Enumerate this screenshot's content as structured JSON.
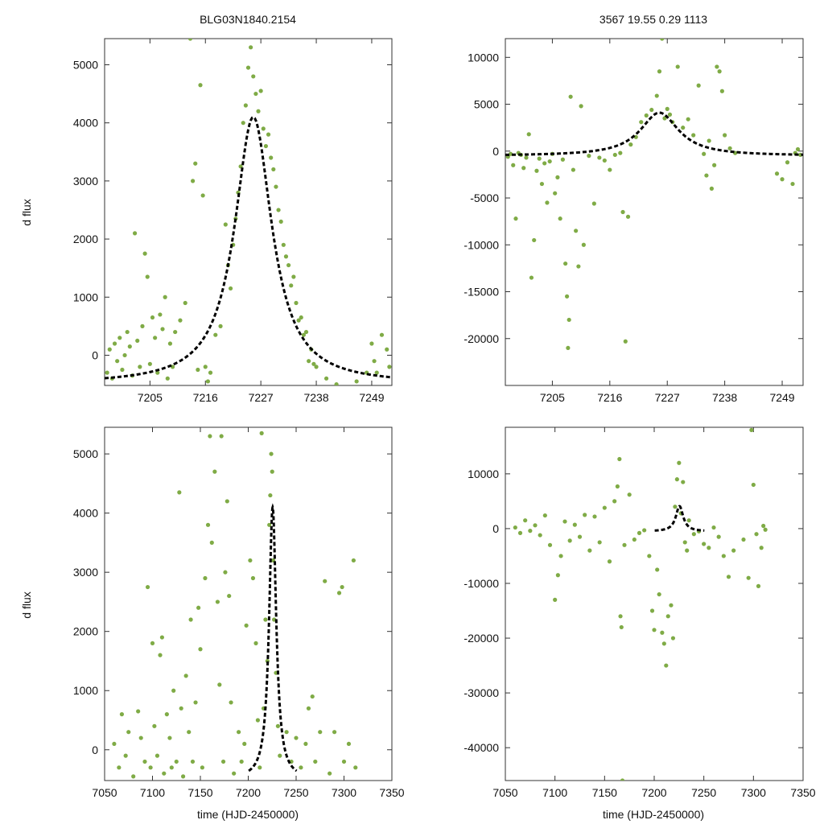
{
  "figure": {
    "title_left": "BLG03N1840.2154",
    "title_right": "3567  19.55  0.29  1113",
    "ylabel": "d flux",
    "xlabel": "time (HJD-2450000)"
  },
  "colors": {
    "points": "#7fab46",
    "model": "#000000",
    "frame": "#333333"
  },
  "chart_data": [
    {
      "id": "top-left",
      "type": "scatter",
      "xlim": [
        7196,
        7253
      ],
      "ylim": [
        -520,
        5450
      ],
      "xticks": [
        7205,
        7216,
        7227,
        7238,
        7249
      ],
      "yticks": [
        0,
        1000,
        2000,
        3000,
        4000,
        5000
      ],
      "ylabel": "d flux",
      "xlabel": "",
      "model": {
        "t0": 7225.5,
        "tE": 11,
        "amp": 4600,
        "base": -500
      },
      "points": [
        [
          7196.5,
          -300
        ],
        [
          7197,
          100
        ],
        [
          7197.5,
          -400
        ],
        [
          7198,
          200
        ],
        [
          7198.5,
          -100
        ],
        [
          7199,
          300
        ],
        [
          7199.5,
          -250
        ],
        [
          7200,
          0
        ],
        [
          7200.5,
          400
        ],
        [
          7201,
          150
        ],
        [
          7201.5,
          -350
        ],
        [
          7202,
          2100
        ],
        [
          7202.5,
          250
        ],
        [
          7203,
          -200
        ],
        [
          7203.5,
          500
        ],
        [
          7204,
          1750
        ],
        [
          7204.5,
          1350
        ],
        [
          7205,
          -150
        ],
        [
          7205.5,
          650
        ],
        [
          7206,
          300
        ],
        [
          7206.5,
          -300
        ],
        [
          7207,
          700
        ],
        [
          7207.5,
          450
        ],
        [
          7208,
          1000
        ],
        [
          7208.5,
          -400
        ],
        [
          7209,
          200
        ],
        [
          7209.5,
          -200
        ],
        [
          7210,
          400
        ],
        [
          7211,
          600
        ],
        [
          7212,
          900
        ],
        [
          7213,
          5450
        ],
        [
          7213.5,
          3000
        ],
        [
          7214,
          3300
        ],
        [
          7214.5,
          -250
        ],
        [
          7215,
          4650
        ],
        [
          7215.5,
          2750
        ],
        [
          7216,
          -200
        ],
        [
          7216.5,
          -450
        ],
        [
          7217,
          -300
        ],
        [
          7218,
          350
        ],
        [
          7219,
          500
        ],
        [
          7220,
          2250
        ],
        [
          7220.5,
          1550
        ],
        [
          7221,
          1150
        ],
        [
          7221.5,
          1900
        ],
        [
          7222,
          2350
        ],
        [
          7222.5,
          2800
        ],
        [
          7223,
          3250
        ],
        [
          7223.5,
          4000
        ],
        [
          7224,
          4300
        ],
        [
          7224.5,
          4950
        ],
        [
          7225,
          5300
        ],
        [
          7225.5,
          4800
        ],
        [
          7226,
          4500
        ],
        [
          7226.5,
          4200
        ],
        [
          7227,
          4550
        ],
        [
          7227.5,
          3900
        ],
        [
          7228,
          3600
        ],
        [
          7228.5,
          3800
        ],
        [
          7229,
          3400
        ],
        [
          7229.5,
          3200
        ],
        [
          7230,
          2900
        ],
        [
          7230.5,
          2500
        ],
        [
          7231,
          2300
        ],
        [
          7231.5,
          1900
        ],
        [
          7232,
          1700
        ],
        [
          7232.5,
          1550
        ],
        [
          7233,
          1200
        ],
        [
          7233.5,
          1350
        ],
        [
          7234,
          900
        ],
        [
          7234.5,
          600
        ],
        [
          7235,
          650
        ],
        [
          7235.5,
          350
        ],
        [
          7236,
          400
        ],
        [
          7236.5,
          -100
        ],
        [
          7237,
          100
        ],
        [
          7237.5,
          -150
        ],
        [
          7238,
          -200
        ],
        [
          7240,
          -400
        ],
        [
          7242,
          -500
        ],
        [
          7246,
          -450
        ],
        [
          7248,
          -300
        ],
        [
          7249,
          200
        ],
        [
          7249.5,
          -100
        ],
        [
          7250,
          -300
        ],
        [
          7251,
          350
        ],
        [
          7252,
          100
        ],
        [
          7252.5,
          -200
        ]
      ]
    },
    {
      "id": "top-right",
      "type": "scatter",
      "xlim": [
        7196,
        7253
      ],
      "ylim": [
        -25000,
        12000
      ],
      "xticks": [
        7205,
        7216,
        7227,
        7238,
        7249
      ],
      "yticks": [
        10000,
        5000,
        0,
        -5000,
        -10000,
        -15000,
        -20000
      ],
      "ylabel": "",
      "xlabel": "",
      "model": {
        "t0": 7225.5,
        "tE": 11,
        "amp": 4600,
        "base": -500
      },
      "points": [
        [
          7196.5,
          -600
        ],
        [
          7197,
          -300
        ],
        [
          7197.5,
          -1500
        ],
        [
          7198,
          -7200
        ],
        [
          7198.5,
          -200
        ],
        [
          7199,
          -400
        ],
        [
          7199.5,
          -1800
        ],
        [
          7200,
          -700
        ],
        [
          7200.5,
          1800
        ],
        [
          7201,
          -13500
        ],
        [
          7201.5,
          -9500
        ],
        [
          7202,
          -2100
        ],
        [
          7202.5,
          -800
        ],
        [
          7203,
          -3500
        ],
        [
          7203.5,
          -1300
        ],
        [
          7204,
          -5500
        ],
        [
          7204.5,
          -1100
        ],
        [
          7205,
          -300
        ],
        [
          7205.5,
          -4500
        ],
        [
          7206,
          -2800
        ],
        [
          7206.5,
          -7200
        ],
        [
          7207,
          -900
        ],
        [
          7207.5,
          -12000
        ],
        [
          7207.8,
          -15500
        ],
        [
          7208,
          -21000
        ],
        [
          7208.2,
          -18000
        ],
        [
          7208.5,
          5800
        ],
        [
          7209,
          -2000
        ],
        [
          7209.5,
          -8500
        ],
        [
          7210,
          -12300
        ],
        [
          7210.5,
          4800
        ],
        [
          7211,
          -10000
        ],
        [
          7212,
          -500
        ],
        [
          7213,
          -5600
        ],
        [
          7214,
          -700
        ],
        [
          7215,
          -1000
        ],
        [
          7216,
          -2000
        ],
        [
          7217,
          -400
        ],
        [
          7218,
          -200
        ],
        [
          7218.5,
          -6500
        ],
        [
          7219,
          -20300
        ],
        [
          7219.5,
          -7000
        ],
        [
          7220,
          700
        ],
        [
          7221,
          1500
        ],
        [
          7222,
          3100
        ],
        [
          7223,
          3800
        ],
        [
          7224,
          4400
        ],
        [
          7225,
          5900
        ],
        [
          7225.5,
          8500
        ],
        [
          7226,
          12000
        ],
        [
          7226.5,
          3500
        ],
        [
          7227,
          4500
        ],
        [
          7227.5,
          3900
        ],
        [
          7228,
          3100
        ],
        [
          7229,
          9000
        ],
        [
          7230,
          2500
        ],
        [
          7231,
          3400
        ],
        [
          7232,
          1700
        ],
        [
          7233,
          7000
        ],
        [
          7234,
          -300
        ],
        [
          7234.5,
          -2600
        ],
        [
          7235,
          1100
        ],
        [
          7235.5,
          -4000
        ],
        [
          7236,
          -1500
        ],
        [
          7236.5,
          9000
        ],
        [
          7237,
          8500
        ],
        [
          7237.5,
          6400
        ],
        [
          7238,
          1700
        ],
        [
          7239,
          300
        ],
        [
          7240,
          -200
        ],
        [
          7248,
          -2400
        ],
        [
          7249,
          -3000
        ],
        [
          7250,
          -1200
        ],
        [
          7251,
          -3500
        ],
        [
          7251.5,
          -200
        ],
        [
          7252,
          200
        ],
        [
          7252.5,
          -400
        ]
      ]
    },
    {
      "id": "bottom-left",
      "type": "scatter",
      "xlim": [
        7050,
        7350
      ],
      "ylim": [
        -520,
        5450
      ],
      "xticks": [
        7050,
        7100,
        7150,
        7200,
        7250,
        7300,
        7350
      ],
      "yticks": [
        0,
        1000,
        2000,
        3000,
        4000,
        5000
      ],
      "ylabel": "d flux",
      "xlabel": "time (HJD-2450000)",
      "model": {
        "t0": 7225.5,
        "tE": 11,
        "amp": 4600,
        "base": -500
      },
      "points": [
        [
          7060,
          100
        ],
        [
          7065,
          -300
        ],
        [
          7068,
          600
        ],
        [
          7072,
          -100
        ],
        [
          7075,
          300
        ],
        [
          7080,
          -450
        ],
        [
          7085,
          650
        ],
        [
          7088,
          200
        ],
        [
          7092,
          -200
        ],
        [
          7095,
          2750
        ],
        [
          7098,
          -300
        ],
        [
          7100,
          1800
        ],
        [
          7102,
          400
        ],
        [
          7105,
          -100
        ],
        [
          7108,
          1600
        ],
        [
          7110,
          1900
        ],
        [
          7112,
          -400
        ],
        [
          7115,
          600
        ],
        [
          7118,
          200
        ],
        [
          7120,
          -300
        ],
        [
          7122,
          1000
        ],
        [
          7125,
          -200
        ],
        [
          7128,
          4350
        ],
        [
          7130,
          700
        ],
        [
          7132,
          -450
        ],
        [
          7135,
          1250
        ],
        [
          7138,
          300
        ],
        [
          7140,
          2200
        ],
        [
          7142,
          -200
        ],
        [
          7145,
          800
        ],
        [
          7148,
          2400
        ],
        [
          7150,
          1700
        ],
        [
          7152,
          -300
        ],
        [
          7155,
          2900
        ],
        [
          7158,
          3800
        ],
        [
          7160,
          5300
        ],
        [
          7162,
          3500
        ],
        [
          7165,
          4700
        ],
        [
          7168,
          2500
        ],
        [
          7170,
          1100
        ],
        [
          7172,
          5300
        ],
        [
          7174,
          -200
        ],
        [
          7176,
          3000
        ],
        [
          7178,
          4200
        ],
        [
          7180,
          2600
        ],
        [
          7182,
          800
        ],
        [
          7185,
          -400
        ],
        [
          7190,
          300
        ],
        [
          7193,
          -200
        ],
        [
          7196,
          100
        ],
        [
          7198,
          2100
        ],
        [
          7202,
          3200
        ],
        [
          7205,
          2900
        ],
        [
          7208,
          1800
        ],
        [
          7210,
          500
        ],
        [
          7212,
          -300
        ],
        [
          7214,
          5350
        ],
        [
          7216,
          700
        ],
        [
          7218,
          2200
        ],
        [
          7220,
          1500
        ],
        [
          7222,
          3800
        ],
        [
          7223,
          4300
        ],
        [
          7224,
          5000
        ],
        [
          7225,
          4700
        ],
        [
          7226,
          3200
        ],
        [
          7227,
          2200
        ],
        [
          7229,
          1300
        ],
        [
          7231,
          400
        ],
        [
          7233,
          -100
        ],
        [
          7240,
          300
        ],
        [
          7245,
          -200
        ],
        [
          7250,
          200
        ],
        [
          7255,
          -300
        ],
        [
          7260,
          100
        ],
        [
          7263,
          700
        ],
        [
          7267,
          900
        ],
        [
          7270,
          -200
        ],
        [
          7275,
          300
        ],
        [
          7280,
          2850
        ],
        [
          7285,
          -400
        ],
        [
          7290,
          300
        ],
        [
          7295,
          2650
        ],
        [
          7298,
          2750
        ],
        [
          7300,
          -200
        ],
        [
          7305,
          100
        ],
        [
          7310,
          3200
        ],
        [
          7312,
          -300
        ]
      ]
    },
    {
      "id": "bottom-right",
      "type": "scatter",
      "xlim": [
        7050,
        7350
      ],
      "ylim": [
        -46000,
        18500
      ],
      "xticks": [
        7050,
        7100,
        7150,
        7200,
        7250,
        7300,
        7350
      ],
      "yticks": [
        10000,
        0,
        -10000,
        -20000,
        -30000,
        -40000
      ],
      "ylabel": "",
      "xlabel": "time (HJD-2450000)",
      "model": {
        "t0": 7225.5,
        "tE": 11,
        "amp": 4600,
        "base": -500
      },
      "points": [
        [
          7060,
          200
        ],
        [
          7065,
          -800
        ],
        [
          7070,
          1500
        ],
        [
          7075,
          -400
        ],
        [
          7080,
          600
        ],
        [
          7085,
          -1200
        ],
        [
          7090,
          2400
        ],
        [
          7095,
          -3000
        ],
        [
          7100,
          -13000
        ],
        [
          7103,
          -8500
        ],
        [
          7106,
          -5000
        ],
        [
          7110,
          1300
        ],
        [
          7115,
          -2200
        ],
        [
          7120,
          700
        ],
        [
          7125,
          -1500
        ],
        [
          7130,
          2500
        ],
        [
          7135,
          -4000
        ],
        [
          7140,
          2200
        ],
        [
          7145,
          -2500
        ],
        [
          7150,
          3800
        ],
        [
          7155,
          -6000
        ],
        [
          7160,
          5000
        ],
        [
          7163,
          7700
        ],
        [
          7165,
          12700
        ],
        [
          7166,
          -16000
        ],
        [
          7167,
          -18000
        ],
        [
          7168,
          -46000
        ],
        [
          7170,
          -3000
        ],
        [
          7175,
          6200
        ],
        [
          7180,
          -2000
        ],
        [
          7185,
          -800
        ],
        [
          7190,
          -300
        ],
        [
          7195,
          -5000
        ],
        [
          7198,
          -15000
        ],
        [
          7200,
          -18500
        ],
        [
          7203,
          -7500
        ],
        [
          7205,
          -12000
        ],
        [
          7208,
          -19000
        ],
        [
          7210,
          -21000
        ],
        [
          7212,
          -25000
        ],
        [
          7214,
          -16000
        ],
        [
          7217,
          -14000
        ],
        [
          7219,
          -20000
        ],
        [
          7221,
          4000
        ],
        [
          7223,
          9000
        ],
        [
          7225,
          12000
        ],
        [
          7227,
          2800
        ],
        [
          7229,
          8500
        ],
        [
          7231,
          -2500
        ],
        [
          7233,
          -4000
        ],
        [
          7235,
          1500
        ],
        [
          7240,
          -1000
        ],
        [
          7245,
          -500
        ],
        [
          7250,
          -2800
        ],
        [
          7255,
          -3500
        ],
        [
          7260,
          200
        ],
        [
          7265,
          -1500
        ],
        [
          7270,
          -5000
        ],
        [
          7275,
          -8800
        ],
        [
          7280,
          -4000
        ],
        [
          7290,
          -2000
        ],
        [
          7295,
          -9000
        ],
        [
          7298,
          18000
        ],
        [
          7300,
          8000
        ],
        [
          7303,
          -1000
        ],
        [
          7305,
          -10500
        ],
        [
          7308,
          -3500
        ],
        [
          7310,
          500
        ],
        [
          7312,
          -200
        ]
      ]
    }
  ]
}
